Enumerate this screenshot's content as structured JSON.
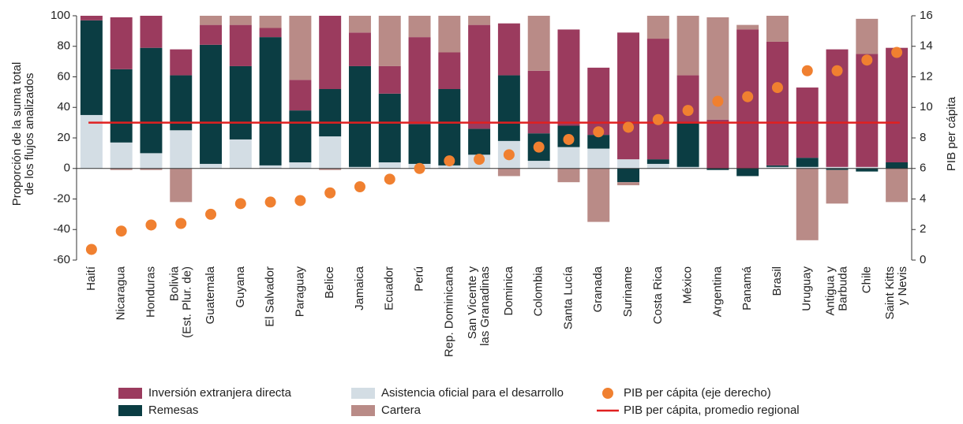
{
  "chart_data": {
    "type": "bar",
    "stacked": true,
    "y_label": "Proporción de la suma total\nde los flujos analizados",
    "y2_label": "PIB per cápita",
    "categories": [
      "Haití",
      "Nicaragua",
      "Honduras",
      "Bolivia\n(Est. Plur. de)",
      "Guatemala",
      "Guyana",
      "El Salvador",
      "Paraguay",
      "Belice",
      "Jamaica",
      "Ecuador",
      "Perú",
      "Rep. Dominicana",
      "San Vicente y\nlas Granadinas",
      "Dominica",
      "Colombia",
      "Santa Lucía",
      "Granada",
      "Suriname",
      "Costa Rica",
      "México",
      "Argentina",
      "Panamá",
      "Brasil",
      "Uruguay",
      "Antigua y\nBarbuda",
      "Chile",
      "Saint Kitts\ny Nevis"
    ],
    "series": [
      {
        "name": "Asistencia oficial para el desarrollo",
        "color": "#d3dde4",
        "values": [
          35,
          17,
          10,
          25,
          3,
          19,
          2,
          4,
          21,
          1,
          4,
          3,
          2,
          9,
          18,
          5,
          14,
          13,
          6,
          3,
          1,
          0,
          0,
          1,
          1,
          1,
          1,
          0
        ]
      },
      {
        "name": "Remesas",
        "color": "#0b3d43",
        "values": [
          62,
          48,
          69,
          36,
          78,
          48,
          84,
          34,
          31,
          66,
          45,
          26,
          50,
          17,
          43,
          18,
          14,
          9,
          -9,
          3,
          29,
          -1,
          -5,
          1,
          6,
          -1,
          -2,
          4
        ]
      },
      {
        "name": "Inversión extranjera directa",
        "color": "#9b3b5e",
        "values": [
          3,
          34,
          21,
          17,
          13,
          27,
          6,
          20,
          48,
          22,
          18,
          57,
          24,
          68,
          34,
          41,
          63,
          44,
          83,
          79,
          31,
          32,
          91,
          81,
          46,
          77,
          74,
          75
        ]
      },
      {
        "name": "Cartera",
        "color": "#b98b87",
        "values": [
          0,
          -1,
          -1,
          -22,
          6,
          6,
          8,
          42,
          -1,
          11,
          33,
          14,
          24,
          6,
          -5,
          36,
          -9,
          -35,
          -2,
          15,
          39,
          67,
          3,
          17,
          -47,
          -22,
          23,
          -22
        ]
      }
    ],
    "scatter": {
      "name": "PIB per cápita (eje derecho)",
      "color": "#f08030",
      "axis": "y2",
      "values": [
        0.7,
        1.9,
        2.3,
        2.4,
        3.0,
        3.7,
        3.8,
        3.9,
        4.4,
        4.8,
        5.3,
        6.0,
        6.5,
        6.6,
        6.9,
        7.4,
        7.9,
        8.4,
        8.7,
        9.2,
        9.8,
        10.4,
        10.7,
        11.3,
        12.4,
        12.4,
        13.1,
        13.6
      ]
    },
    "reference_line": {
      "name": "PIB per cápita, promedio regional",
      "color": "#e02020",
      "axis": "y2",
      "value": 9
    },
    "ylim": [
      -60,
      100
    ],
    "yticks": [
      -60,
      -40,
      -20,
      0,
      20,
      40,
      60,
      80,
      100
    ],
    "y2lim": [
      0,
      16
    ],
    "y2ticks": [
      0,
      2,
      4,
      6,
      8,
      10,
      12,
      14,
      16
    ],
    "grid": false
  }
}
